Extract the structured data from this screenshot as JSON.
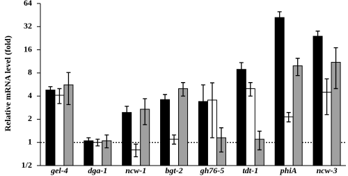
{
  "chart_data": {
    "type": "bar",
    "yscale": "log",
    "ylabel": "Relative mRNA level (fold)",
    "categories": [
      "gel-4",
      "dga-1",
      "ncw-1",
      "bgt-2",
      "gh76-5",
      "tdt-1",
      "phiA",
      "ncw-3"
    ],
    "series": [
      {
        "color": "#000000",
        "values": [
          4.8,
          1.05,
          2.45,
          3.6,
          3.4,
          8.9,
          42,
          24
        ],
        "errors": [
          0.5,
          0.1,
          0.5,
          0.6,
          2.2,
          2.0,
          8,
          4
        ]
      },
      {
        "color": "#ffffff",
        "values": [
          4.1,
          1.0,
          0.8,
          1.1,
          3.55,
          5.0,
          2.15,
          4.5
        ],
        "errors": [
          0.9,
          0.1,
          0.15,
          0.15,
          2.4,
          1.0,
          0.3,
          2.2
        ]
      },
      {
        "color": "#a0a0a0",
        "values": [
          5.6,
          1.05,
          2.7,
          5.0,
          1.15,
          1.1,
          9.9,
          11
        ],
        "errors": [
          2.5,
          0.2,
          1.0,
          1.0,
          0.4,
          0.3,
          2.5,
          6
        ]
      }
    ],
    "ylim": [
      0.5,
      64
    ],
    "yticks": [
      {
        "value": 0.5,
        "label": "1/2"
      },
      1,
      2,
      4,
      8,
      16,
      32,
      64
    ],
    "reference_line": 1
  }
}
